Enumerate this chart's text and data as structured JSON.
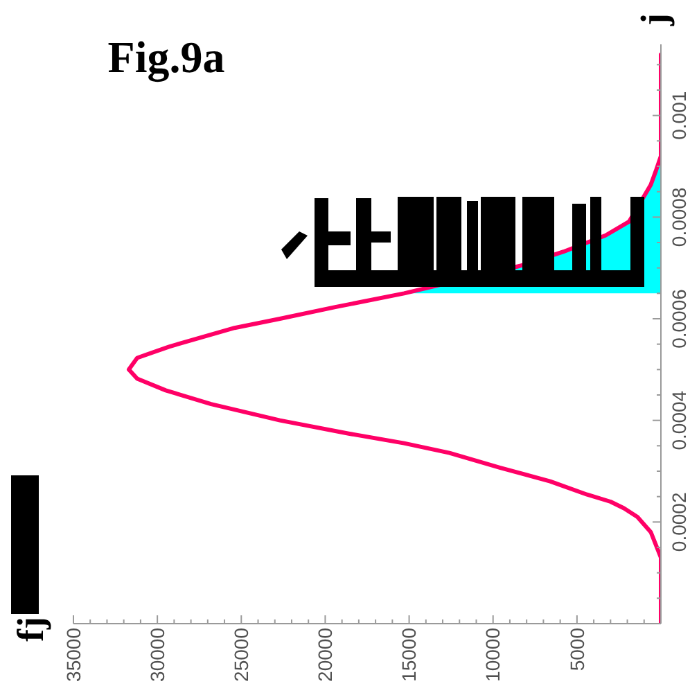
{
  "chart_data": {
    "type": "line",
    "title": "Fig.9a",
    "ylabel": "j",
    "annotations": [
      "fj"
    ],
    "orientation": "horizontal",
    "xlim": [
      35000,
      0
    ],
    "xticks": [
      {
        "value": 1000,
        "label": null
      },
      {
        "value": 2000,
        "label": null
      },
      {
        "value": 3000,
        "label": null
      },
      {
        "value": 4000,
        "label": null
      },
      5000,
      {
        "value": 6000,
        "label": null
      },
      {
        "value": 7000,
        "label": null
      },
      {
        "value": 8000,
        "label": null
      },
      {
        "value": 9000,
        "label": null
      },
      10000,
      {
        "value": 11000,
        "label": null
      },
      {
        "value": 12000,
        "label": null
      },
      {
        "value": 13000,
        "label": null
      },
      {
        "value": 14000,
        "label": null
      },
      15000,
      {
        "value": 16000,
        "label": null
      },
      {
        "value": 17000,
        "label": null
      },
      {
        "value": 18000,
        "label": null
      },
      {
        "value": 19000,
        "label": null
      },
      20000,
      {
        "value": 21000,
        "label": null
      },
      {
        "value": 22000,
        "label": null
      },
      {
        "value": 23000,
        "label": null
      },
      {
        "value": 24000,
        "label": null
      },
      25000,
      {
        "value": 26000,
        "label": null
      },
      {
        "value": 27000,
        "label": null
      },
      {
        "value": 28000,
        "label": null
      },
      {
        "value": 29000,
        "label": null
      },
      30000,
      {
        "value": 31000,
        "label": null
      },
      {
        "value": 32000,
        "label": null
      },
      {
        "value": 33000,
        "label": null
      },
      {
        "value": 34000,
        "label": null
      },
      35000
    ],
    "ylim": [
      0,
      0.00114
    ],
    "yticks": [
      {
        "value": 5e-05,
        "label": null
      },
      {
        "value": 0.0001,
        "label": null
      },
      {
        "value": 0.00015,
        "label": null
      },
      0.0002,
      {
        "value": 0.00025,
        "label": null
      },
      {
        "value": 0.0003,
        "label": null
      },
      {
        "value": 0.00035,
        "label": null
      },
      0.0004,
      {
        "value": 0.00045,
        "label": null
      },
      {
        "value": 0.0005,
        "label": null
      },
      {
        "value": 0.00055,
        "label": null
      },
      0.0006,
      {
        "value": 0.00065,
        "label": null
      },
      {
        "value": 0.0007,
        "label": null
      },
      {
        "value": 0.00075,
        "label": null
      },
      0.0008,
      {
        "value": 0.00085,
        "label": null
      },
      {
        "value": 0.0009,
        "label": null
      },
      {
        "value": 0.00095,
        "label": null
      },
      0.001,
      {
        "value": 0.00105,
        "label": null
      },
      {
        "value": 0.0011,
        "label": null
      }
    ],
    "series": [
      {
        "type": "area",
        "color": "#00ffff",
        "x": [
          0.00065,
          0.000704,
          0.000732,
          0.000764,
          0.000791,
          0.000864,
          0.000891,
          0.00092,
          0.00112
        ],
        "values": [
          15300,
          8400,
          5800,
          3300,
          1900,
          600,
          300,
          0,
          0
        ]
      },
      {
        "color": "#ff0066",
        "x": [
          0,
          0.0001,
          0.00013,
          0.00018,
          0.00021,
          0.000227,
          0.00024,
          0.000254,
          0.00028,
          0.000307,
          0.000336,
          0.000355,
          0.000374,
          0.0004,
          0.000432,
          0.000459,
          0.000482,
          0.0005,
          0.000523,
          0.000545,
          0.000582,
          0.0006,
          0.000623,
          0.00065,
          0.000704,
          0.000732,
          0.000764,
          0.000791,
          0.000864,
          0.000891,
          0.00092,
          0.00112
        ],
        "values": [
          0,
          0,
          0,
          600,
          1400,
          2200,
          3000,
          4400,
          6600,
          9600,
          12600,
          15300,
          18600,
          22700,
          26800,
          29500,
          31200,
          31700,
          31200,
          29300,
          25400,
          22700,
          19400,
          15300,
          8400,
          5800,
          3300,
          1900,
          600,
          300,
          0,
          0
        ]
      }
    ]
  }
}
